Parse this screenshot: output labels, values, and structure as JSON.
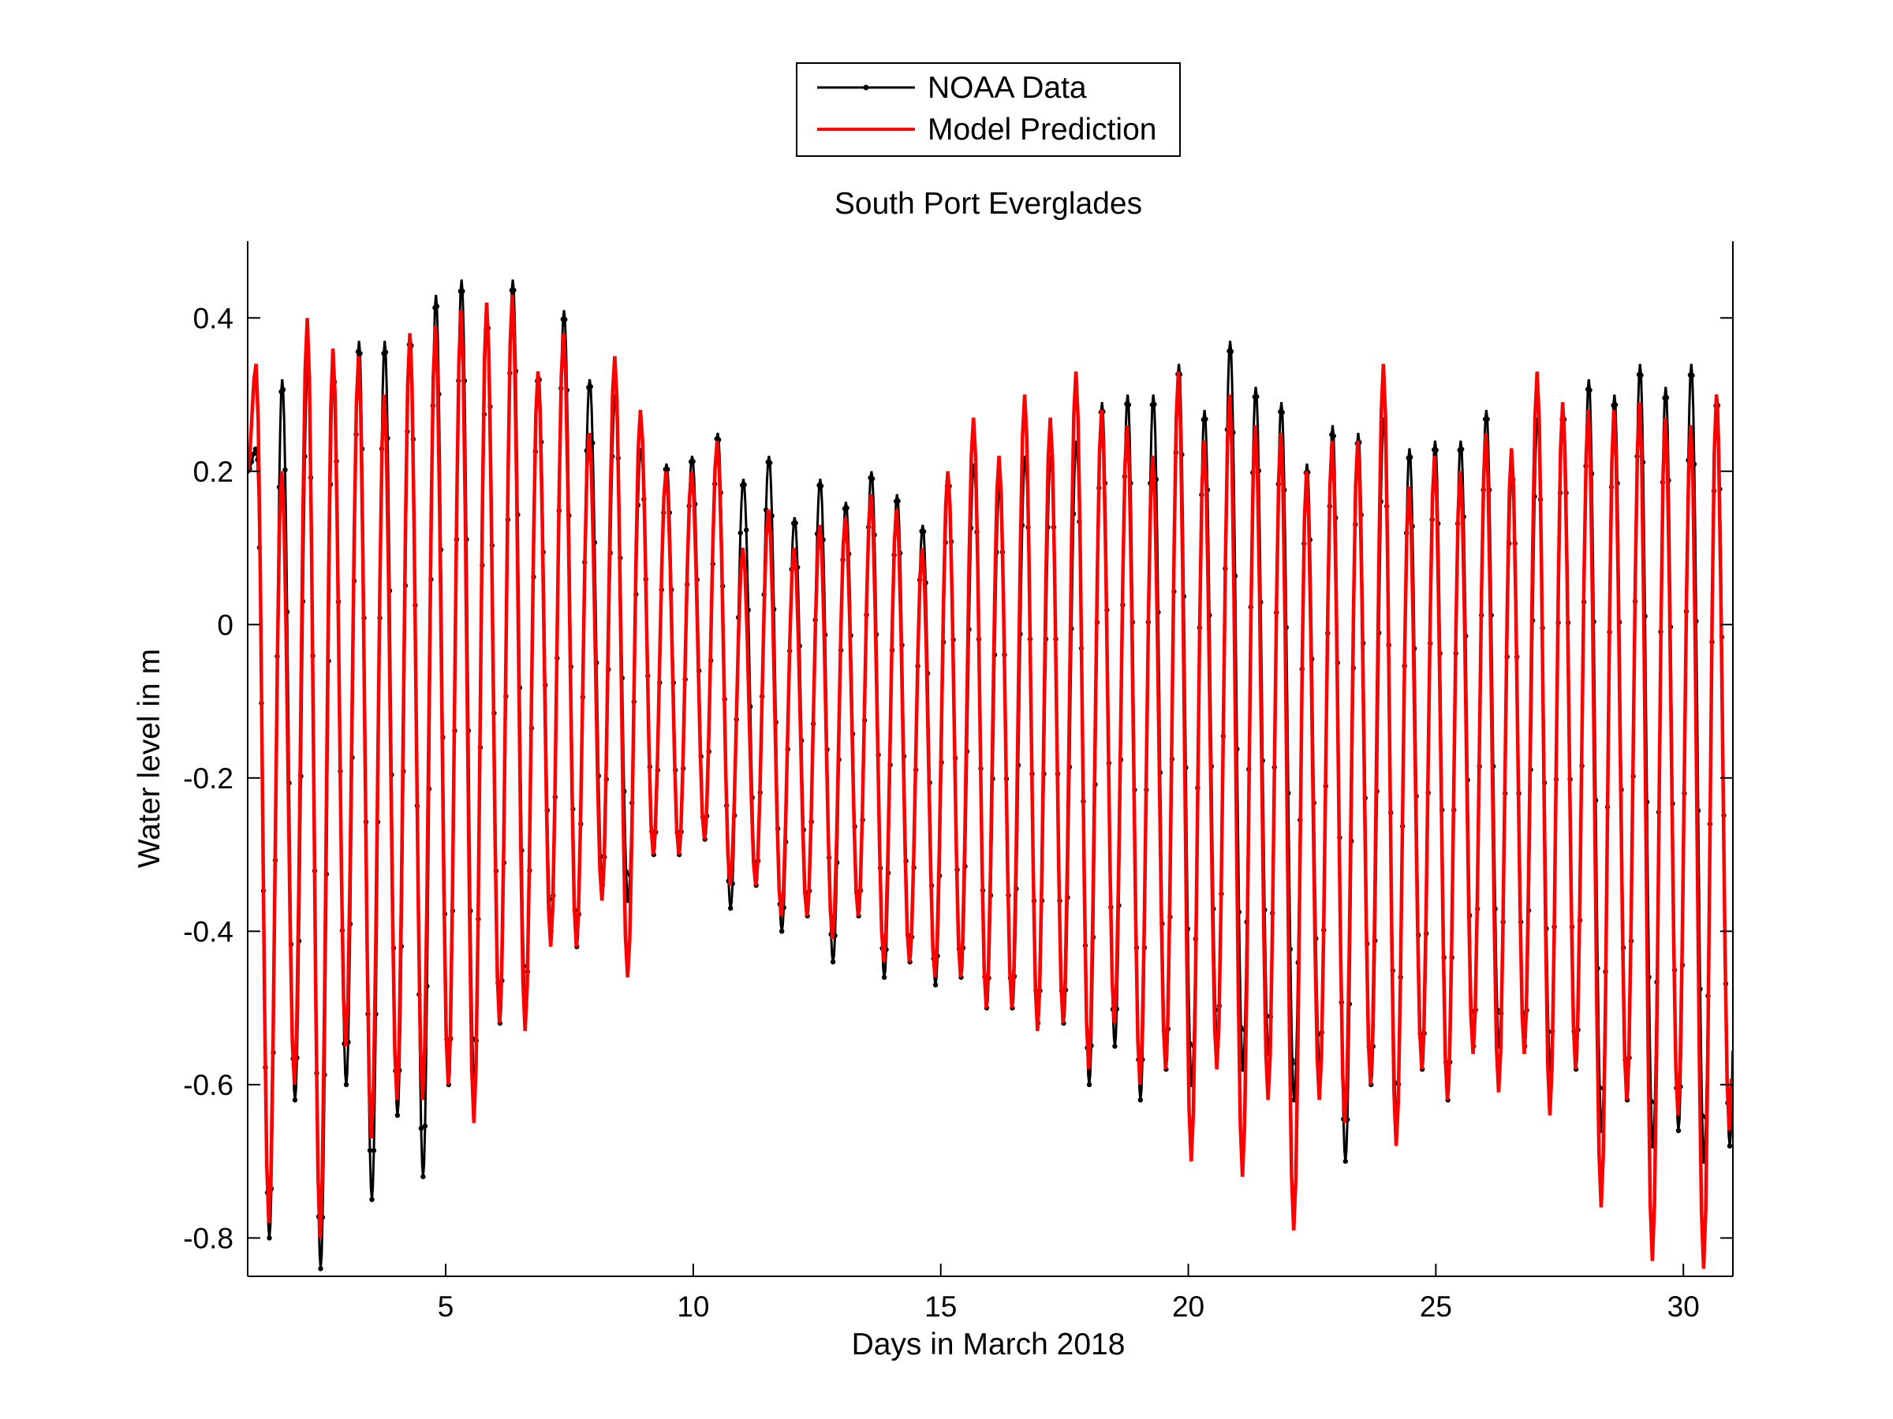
{
  "chart_data": {
    "type": "line",
    "title": "South Port Everglades",
    "xlabel": "Days in March 2018",
    "ylabel": "Water level in m",
    "xlim": [
      1,
      31
    ],
    "ylim": [
      -0.85,
      0.5
    ],
    "xticks": [
      5,
      10,
      15,
      20,
      25,
      30
    ],
    "yticks": [
      -0.8,
      -0.6,
      -0.4,
      -0.2,
      0,
      0.2,
      0.4
    ],
    "ytick_labels": [
      "-0.8",
      "-0.6",
      "-0.4",
      "-0.2",
      "0",
      "0.2",
      "0.4"
    ],
    "xtick_labels": [
      "5",
      "10",
      "15",
      "20",
      "25",
      "30"
    ],
    "grid": false,
    "legend_position": "top-center",
    "tidal_period_days": 0.5175,
    "series": [
      {
        "name": "NOAA Data",
        "color": "#000000",
        "marker": "dot",
        "highs": [
          0.23,
          0.34,
          0.3,
          0.37,
          0.38,
          0.45,
          0.46,
          0.45,
          0.41,
          0.39,
          0.3,
          0.21,
          0.25,
          0.2,
          0.22,
          0.19,
          0.17,
          0.2,
          0.13,
          0.18,
          0.21,
          0.22,
          0.24,
          0.28,
          0.3,
          0.34,
          0.36,
          0.37,
          0.29,
          0.26,
          0.25,
          0.27,
          0.24,
          0.26,
          0.28,
          0.27,
          0.3,
          0.32,
          0.34,
          0.34,
          0.31
        ],
        "highs2": [
          0.32,
          0.24,
          0.33,
          0.37,
          0.35,
          0.43,
          0.4,
          0.36,
          0.33,
          0.32,
          0.23,
          0.18,
          0.22,
          0.19,
          0.2,
          0.14,
          0.16,
          0.17,
          0.11,
          0.19,
          0.18,
          0.2,
          0.22,
          0.29,
          0.3,
          0.33,
          0.28,
          0.31,
          0.28,
          0.21,
          0.25,
          0.24,
          0.23,
          0.24,
          0.2,
          0.25,
          0.28,
          0.3,
          0.35,
          0.31,
          0.3
        ],
        "lows": [
          -0.8,
          -0.75,
          -0.84,
          -0.75,
          -0.72,
          -0.69,
          -0.6,
          -0.5,
          -0.44,
          -0.42,
          -0.36,
          -0.3,
          -0.31,
          -0.37,
          -0.4,
          -0.4,
          -0.44,
          -0.46,
          -0.47,
          -0.48,
          -0.5,
          -0.52,
          -0.56,
          -0.6,
          -0.62,
          -0.65,
          -0.6,
          -0.58,
          -0.62,
          -0.66,
          -0.7,
          -0.65,
          -0.67,
          -0.62,
          -0.55,
          -0.58,
          -0.62,
          -0.66,
          -0.68,
          -0.71,
          -0.7
        ],
        "lows2": [
          -0.54,
          -0.62,
          -0.6,
          -0.66,
          -0.64,
          -0.6,
          -0.52,
          -0.46,
          -0.4,
          -0.34,
          -0.3,
          -0.3,
          -0.28,
          -0.3,
          -0.34,
          -0.38,
          -0.38,
          -0.42,
          -0.44,
          -0.46,
          -0.48,
          -0.5,
          -0.52,
          -0.55,
          -0.57,
          -0.58,
          -0.55,
          -0.56,
          -0.56,
          -0.58,
          -0.62,
          -0.6,
          -0.58,
          -0.55,
          -0.52,
          -0.55,
          -0.58,
          -0.6,
          -0.62,
          -0.66,
          -0.68
        ]
      },
      {
        "name": "Model Prediction",
        "color": "#ff0000",
        "marker": "none",
        "highs": [
          0.34,
          0.4,
          0.4,
          0.35,
          0.38,
          0.41,
          0.5,
          0.43,
          0.38,
          0.3,
          0.35,
          0.2,
          0.24,
          0.12,
          0.15,
          0.13,
          0.2,
          0.17,
          0.1,
          0.19,
          0.27,
          0.3,
          0.33,
          0.36,
          0.26,
          0.33,
          0.29,
          0.3,
          0.25,
          0.24,
          0.3,
          0.34,
          0.22,
          0.21,
          0.25,
          0.33,
          0.32,
          0.28,
          0.29,
          0.26,
          0.35
        ],
        "highs2": [
          0.2,
          0.28,
          0.36,
          0.3,
          0.35,
          0.39,
          0.42,
          0.4,
          0.33,
          0.25,
          0.28,
          0.19,
          0.2,
          0.1,
          0.12,
          0.1,
          0.14,
          0.15,
          0.09,
          0.2,
          0.22,
          0.24,
          0.27,
          0.28,
          0.22,
          0.28,
          0.24,
          0.26,
          0.22,
          0.2,
          0.24,
          0.28,
          0.18,
          0.2,
          0.23,
          0.28,
          0.29,
          0.28,
          0.29,
          0.27,
          0.3
        ],
        "lows": [
          -0.78,
          -0.69,
          -0.8,
          -0.67,
          -0.62,
          -0.65,
          -0.65,
          -0.53,
          -0.46,
          -0.42,
          -0.46,
          -0.3,
          -0.3,
          -0.34,
          -0.38,
          -0.45,
          -0.41,
          -0.44,
          -0.46,
          -0.5,
          -0.5,
          -0.53,
          -0.55,
          -0.58,
          -0.6,
          -0.62,
          -0.7,
          -0.72,
          -0.79,
          -0.67,
          -0.65,
          -0.68,
          -0.67,
          -0.62,
          -0.61,
          -0.64,
          -0.66,
          -0.76,
          -0.83,
          -0.81,
          -0.84
        ],
        "lows2": [
          -0.52,
          -0.6,
          -0.55,
          -0.6,
          -0.62,
          -0.6,
          -0.52,
          -0.46,
          -0.42,
          -0.36,
          -0.32,
          -0.3,
          -0.28,
          -0.3,
          -0.34,
          -0.38,
          -0.38,
          -0.4,
          -0.44,
          -0.46,
          -0.48,
          -0.5,
          -0.52,
          -0.52,
          -0.55,
          -0.58,
          -0.58,
          -0.6,
          -0.62,
          -0.62,
          -0.6,
          -0.6,
          -0.58,
          -0.56,
          -0.54,
          -0.56,
          -0.58,
          -0.6,
          -0.62,
          -0.64,
          -0.66
        ]
      }
    ]
  },
  "legend": {
    "items": [
      {
        "label": "NOAA Data",
        "color": "#000000"
      },
      {
        "label": "Model Prediction",
        "color": "#ff0000"
      }
    ]
  }
}
